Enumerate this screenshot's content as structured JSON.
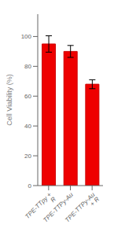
{
  "chart_data": {
    "type": "bar",
    "categories": [
      "TPE-TTpy + R",
      "TPE-TTPy-Au",
      "TPE-TTPy-Au + R"
    ],
    "values": [
      95.0,
      90.0,
      68.0
    ],
    "errors": [
      5.5,
      4.0,
      3.0
    ],
    "color": "#EE0000",
    "ylabel": "Cell Viability (%)",
    "ylim": [
      0,
      115
    ],
    "yticks": [
      0,
      20,
      40,
      60,
      80,
      100
    ],
    "grid": false
  }
}
